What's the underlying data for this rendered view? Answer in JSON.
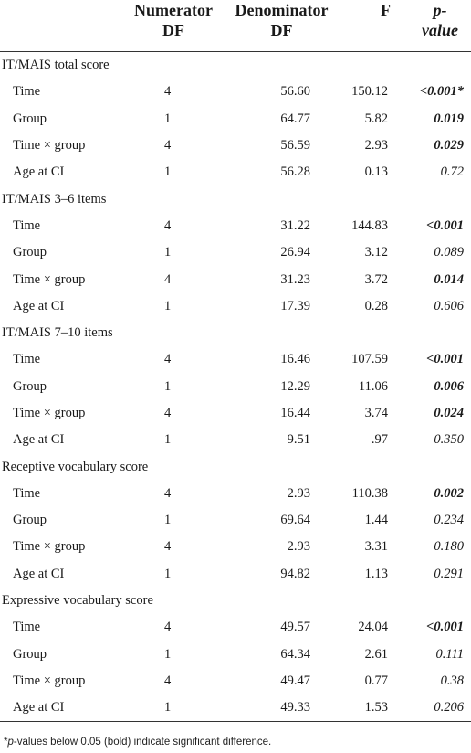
{
  "headers": {
    "term": "",
    "numerator": [
      "Numerator",
      "DF"
    ],
    "denominator": [
      "Denominator",
      "DF"
    ],
    "f": "F",
    "p": [
      "p-",
      "value"
    ]
  },
  "sections": [
    {
      "title": "IT/MAIS total score",
      "rows": [
        {
          "term": "Time",
          "numer": "4",
          "denom": "56.60",
          "f": "150.12",
          "p": "<0.001*",
          "sig": true
        },
        {
          "term": "Group",
          "numer": "1",
          "denom": "64.77",
          "f": "5.82",
          "p": "0.019",
          "sig": true
        },
        {
          "term": "Time × group",
          "numer": "4",
          "denom": "56.59",
          "f": "2.93",
          "p": "0.029",
          "sig": true
        },
        {
          "term": "Age at CI",
          "numer": "1",
          "denom": "56.28",
          "f": "0.13",
          "p": "0.72",
          "sig": false
        }
      ]
    },
    {
      "title": "IT/MAIS 3–6 items",
      "rows": [
        {
          "term": "Time",
          "numer": "4",
          "denom": "31.22",
          "f": "144.83",
          "p": "<0.001",
          "sig": true
        },
        {
          "term": "Group",
          "numer": "1",
          "denom": "26.94",
          "f": "3.12",
          "p": "0.089",
          "sig": false
        },
        {
          "term": "Time × group",
          "numer": "4",
          "denom": "31.23",
          "f": "3.72",
          "p": "0.014",
          "sig": true
        },
        {
          "term": "Age at CI",
          "numer": "1",
          "denom": "17.39",
          "f": "0.28",
          "p": "0.606",
          "sig": false
        }
      ]
    },
    {
      "title": "IT/MAIS 7–10 items",
      "rows": [
        {
          "term": "Time",
          "numer": "4",
          "denom": "16.46",
          "f": "107.59",
          "p": "<0.001",
          "sig": true
        },
        {
          "term": "Group",
          "numer": "1",
          "denom": "12.29",
          "f": "11.06",
          "p": "0.006",
          "sig": true
        },
        {
          "term": "Time × group",
          "numer": "4",
          "denom": "16.44",
          "f": "3.74",
          "p": "0.024",
          "sig": true
        },
        {
          "term": "Age at CI",
          "numer": "1",
          "denom": "9.51",
          "f": ".97",
          "p": "0.350",
          "sig": false
        }
      ]
    },
    {
      "title": "Receptive vocabulary score",
      "rows": [
        {
          "term": "Time",
          "numer": "4",
          "denom": "2.93",
          "f": "110.38",
          "p": "0.002",
          "sig": true
        },
        {
          "term": "Group",
          "numer": "1",
          "denom": "69.64",
          "f": "1.44",
          "p": "0.234",
          "sig": false
        },
        {
          "term": "Time × group",
          "numer": "4",
          "denom": "2.93",
          "f": "3.31",
          "p": "0.180",
          "sig": false
        },
        {
          "term": "Age at CI",
          "numer": "1",
          "denom": "94.82",
          "f": "1.13",
          "p": "0.291",
          "sig": false
        }
      ]
    },
    {
      "title": "Expressive vocabulary score",
      "rows": [
        {
          "term": "Time",
          "numer": "4",
          "denom": "49.57",
          "f": "24.04",
          "p": "<0.001",
          "sig": true
        },
        {
          "term": "Group",
          "numer": "1",
          "denom": "64.34",
          "f": "2.61",
          "p": "0.111",
          "sig": false
        },
        {
          "term": "Time × group",
          "numer": "4",
          "denom": "49.47",
          "f": "0.77",
          "p": "0.38",
          "sig": false
        },
        {
          "term": "Age at CI",
          "numer": "1",
          "denom": "49.33",
          "f": "1.53",
          "p": "0.206",
          "sig": false
        }
      ]
    }
  ],
  "footnote": {
    "mark": "*",
    "p_italic": "p",
    "text": "-values below 0.05 (bold) indicate significant difference."
  }
}
